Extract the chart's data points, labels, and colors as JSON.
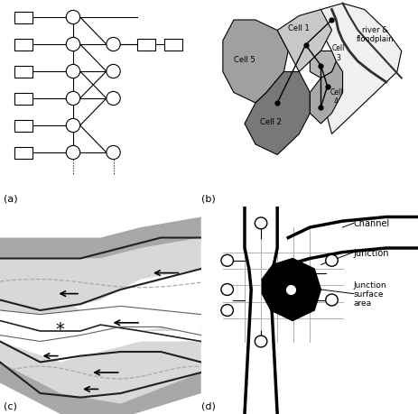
{
  "bg_color": "#ffffff",
  "panel_labels": [
    "(a)",
    "(b)",
    "(c)",
    "(d)"
  ],
  "panel_label_fontsize": 8
}
